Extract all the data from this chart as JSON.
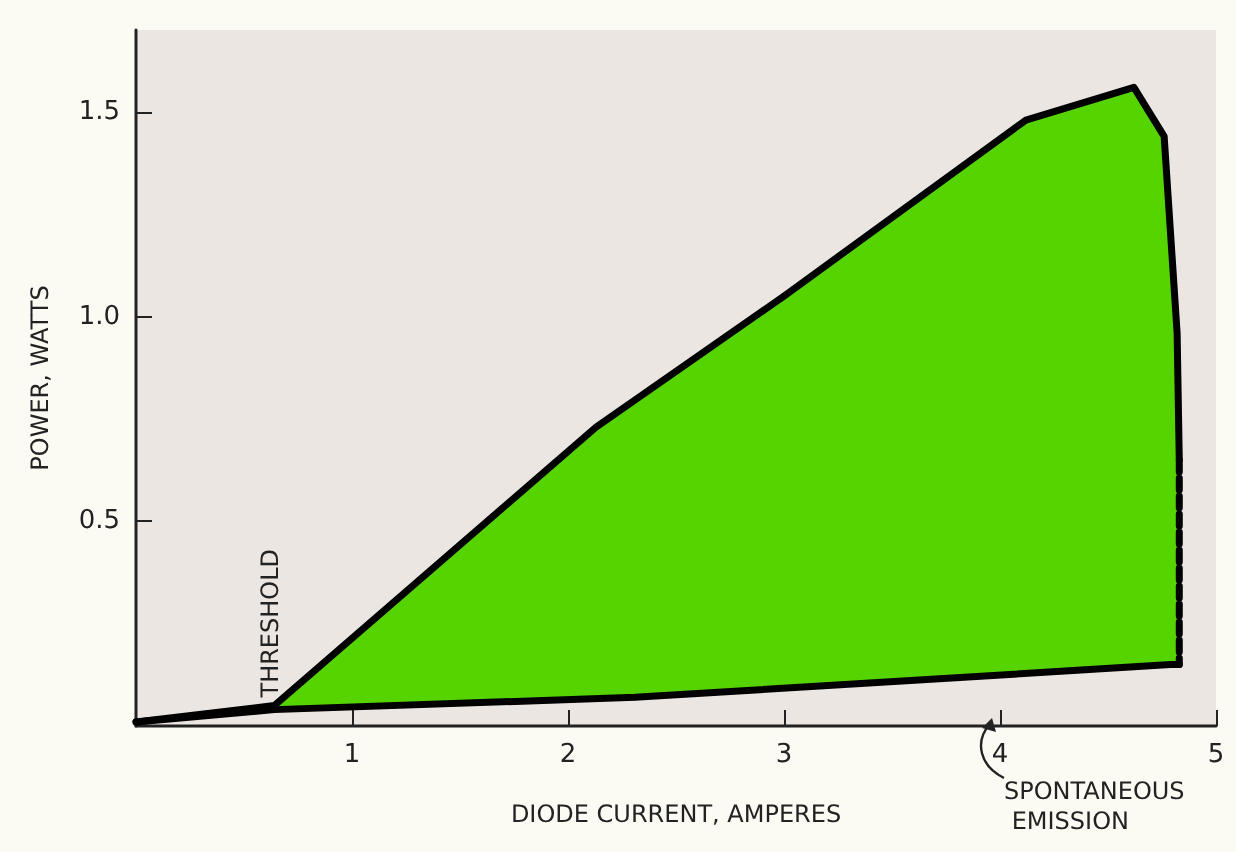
{
  "chart_data": {
    "type": "line",
    "xlabel": "DIODE CURRENT, AMPERES",
    "ylabel": "POWER, WATTS",
    "xlim": [
      0,
      5
    ],
    "xticks": [
      1,
      2,
      3,
      4,
      5
    ],
    "ylim": [
      0,
      1.7
    ],
    "yticks": [
      0.5,
      {
        "value": 1,
        "label": "1.0"
      },
      1.5
    ],
    "grid": false,
    "series": [
      {
        "type": "area",
        "color": "#55d400",
        "x": [
          0.64,
          2.13,
          3,
          4.12,
          4.62,
          4.76,
          4.82,
          4.83,
          4.83,
          4.79,
          2.31,
          0.64
        ],
        "values": [
          0.05,
          0.73,
          1.05,
          1.48,
          1.56,
          1.44,
          0.96,
          0.65,
          0.15,
          0.15,
          0.07,
          0.04
        ]
      },
      {
        "color": "#000000",
        "line_style": "solid",
        "x": [
          0,
          0.64,
          2.13,
          3,
          4.12,
          4.62,
          4.76,
          4.82,
          4.83
        ],
        "values": [
          0.01,
          0.05,
          0.73,
          1.05,
          1.48,
          1.56,
          1.44,
          0.96,
          0.65
        ]
      },
      {
        "color": "#000000",
        "line_style": "dashed",
        "x": [
          4.83,
          4.83
        ],
        "values": [
          0.65,
          0.15
        ]
      },
      {
        "color": "#000000",
        "line_style": "solid",
        "x": [
          0,
          0.64,
          2.31,
          4.79,
          4.83
        ],
        "values": [
          0.01,
          0.04,
          0.07,
          0.15,
          0.15
        ]
      }
    ],
    "annotations": [
      {
        "text": "THRESHOLD",
        "x": 0.64,
        "y": 0.05
      },
      "SPONTANEOUS EMISSION"
    ]
  }
}
